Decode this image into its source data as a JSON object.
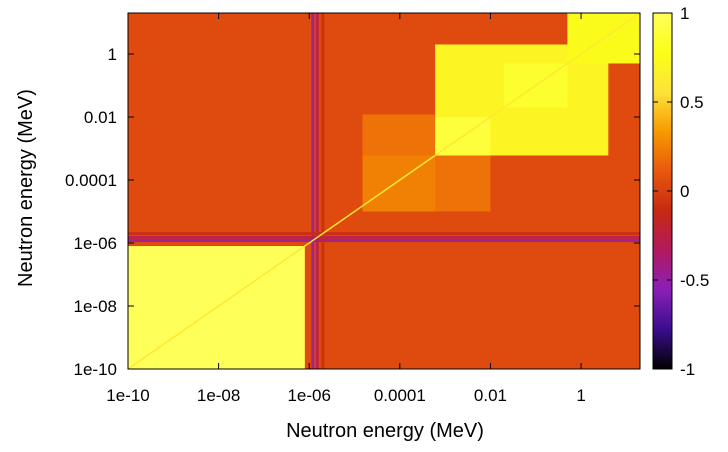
{
  "chart_data": {
    "type": "heatmap",
    "title": "",
    "xlabel": "Neutron energy (MeV)",
    "ylabel": "Neutron energy (MeV)",
    "x_scale": "log",
    "y_scale": "log",
    "xlim": [
      1e-10,
      20
    ],
    "ylim": [
      1e-10,
      20
    ],
    "x_ticks": [
      {
        "value": 1e-10,
        "label": "1e-10"
      },
      {
        "value": 1e-08,
        "label": "1e-08"
      },
      {
        "value": 1e-06,
        "label": "1e-06"
      },
      {
        "value": 0.0001,
        "label": "0.0001"
      },
      {
        "value": 0.01,
        "label": "0.01"
      },
      {
        "value": 1,
        "label": "1"
      }
    ],
    "y_ticks": [
      {
        "value": 1e-10,
        "label": "1e-10"
      },
      {
        "value": 1e-08,
        "label": "1e-08"
      },
      {
        "value": 1e-06,
        "label": "1e-06"
      },
      {
        "value": 0.0001,
        "label": "0.0001"
      },
      {
        "value": 0.01,
        "label": "0.01"
      },
      {
        "value": 1,
        "label": "1"
      }
    ],
    "colorbar": {
      "range": [
        -1,
        1
      ],
      "ticks": [
        {
          "value": 1,
          "label": "1"
        },
        {
          "value": 0.5,
          "label": "0.5"
        },
        {
          "value": 0,
          "label": "0"
        },
        {
          "value": -0.5,
          "label": "-0.5"
        },
        {
          "value": -1,
          "label": "-1"
        }
      ],
      "colormap": [
        "#000000",
        "#3a0d8c",
        "#8a1fb8",
        "#b2195f",
        "#c62a12",
        "#e8580d",
        "#f79a00",
        "#fde23a",
        "#fbff17",
        "#ffff5a"
      ]
    },
    "background_value": 0.05,
    "blocks": [
      {
        "x": [
          1e-10,
          8e-07
        ],
        "y": [
          1e-10,
          8e-07
        ],
        "value": 1.0
      },
      {
        "x": [
          0.0006,
          4
        ],
        "y": [
          0.0006,
          2
        ],
        "value": 0.7
      },
      {
        "x": [
          0.0006,
          0.01
        ],
        "y": [
          0.0006,
          0.01
        ],
        "value": 0.9
      },
      {
        "x": [
          0.02,
          0.5
        ],
        "y": [
          0.02,
          0.5
        ],
        "value": 0.85
      },
      {
        "x": [
          0.5,
          20
        ],
        "y": [
          0.5,
          20
        ],
        "value": 0.75
      },
      {
        "x": [
          1.5e-05,
          0.0006
        ],
        "y": [
          0.0006,
          0.012
        ],
        "value": 0.2
      },
      {
        "x": [
          1.5e-05,
          0.01
        ],
        "y": [
          1e-05,
          0.0006
        ],
        "value": 0.2
      },
      {
        "x": [
          1.5e-05,
          0.0006
        ],
        "y": [
          1e-05,
          0.0006
        ],
        "value": 0.25
      }
    ],
    "diagonal_value": 0.6,
    "resonance_bands": [
      {
        "energy": 1.2e-06,
        "value": -0.5
      },
      {
        "energy": 1.5e-06,
        "value": -0.3
      },
      {
        "energy": 2e-06,
        "value": -0.1
      }
    ]
  }
}
